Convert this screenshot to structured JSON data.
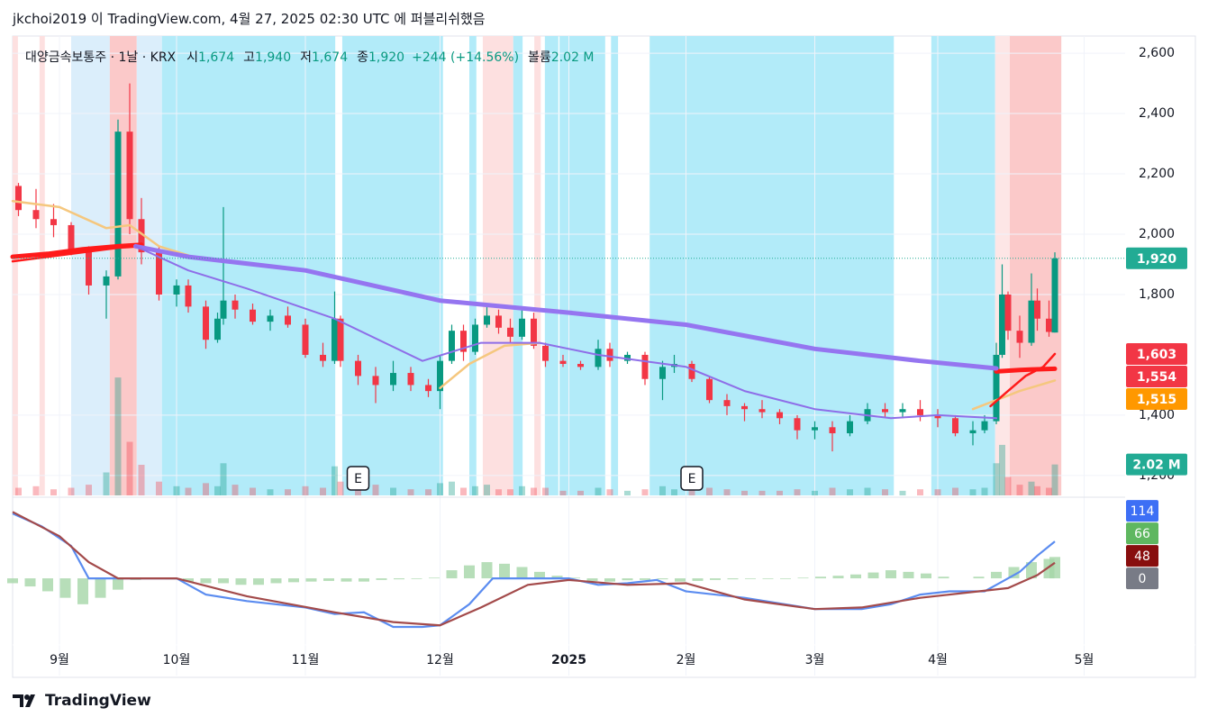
{
  "header": "jkchoi2019 이 TradingView.com, 4월 27, 2025 02:30 UTC 에 퍼블리쉬했음",
  "legend": {
    "symbol": "대양금속보통주 · 1날 · KRX",
    "fields": [
      {
        "key": "시",
        "value": "1,674"
      },
      {
        "key": "고",
        "value": "1,940"
      },
      {
        "key": "저",
        "value": "1,674"
      },
      {
        "key": "종",
        "value": "1,920"
      }
    ],
    "change": "+244 (+14.56%)",
    "volume_key": "볼륨",
    "volume": "2.02 M"
  },
  "footer": "TradingView",
  "chart_data": {
    "type": "candlestick",
    "x": [
      1,
      4,
      7,
      10,
      13,
      16,
      18,
      20,
      22,
      25,
      28,
      30,
      33,
      35,
      36,
      38,
      41,
      44,
      47,
      50,
      53,
      55,
      56,
      59,
      62,
      65,
      68,
      71,
      73,
      75,
      77,
      79,
      81,
      83,
      85,
      87,
      89,
      91,
      94,
      97,
      100,
      102,
      105,
      108,
      111,
      113,
      116,
      119,
      122,
      125,
      128,
      131,
      134,
      137,
      140,
      143,
      146,
      149,
      152,
      155,
      158,
      161,
      164,
      166,
      168,
      169,
      170,
      172,
      174,
      175,
      177,
      178
    ],
    "open": [
      2160,
      2080,
      2050,
      2030,
      1950,
      1830,
      1860,
      2340,
      2050,
      1940,
      1800,
      1830,
      1760,
      1650,
      1720,
      1780,
      1750,
      1710,
      1730,
      1700,
      1600,
      1580,
      1720,
      1580,
      1530,
      1500,
      1540,
      1500,
      1480,
      1580,
      1680,
      1610,
      1700,
      1730,
      1690,
      1660,
      1720,
      1630,
      1580,
      1570,
      1560,
      1620,
      1580,
      1600,
      1520,
      1560,
      1570,
      1520,
      1450,
      1430,
      1420,
      1410,
      1390,
      1350,
      1360,
      1340,
      1380,
      1420,
      1410,
      1420,
      1400,
      1390,
      1340,
      1350,
      1380,
      1600,
      1800,
      1680,
      1640,
      1780,
      1720,
      1674
    ],
    "high": [
      2170,
      2150,
      2100,
      2040,
      1960,
      1880,
      2380,
      2500,
      2120,
      1960,
      1850,
      1850,
      1780,
      1740,
      2090,
      1800,
      1770,
      1750,
      1760,
      1720,
      1640,
      1810,
      1730,
      1600,
      1560,
      1580,
      1560,
      1520,
      1600,
      1700,
      1700,
      1720,
      1760,
      1750,
      1720,
      1760,
      1740,
      1640,
      1600,
      1580,
      1650,
      1640,
      1610,
      1610,
      1580,
      1600,
      1580,
      1530,
      1470,
      1440,
      1450,
      1420,
      1400,
      1380,
      1380,
      1400,
      1440,
      1440,
      1440,
      1450,
      1420,
      1400,
      1380,
      1400,
      1640,
      1900,
      1810,
      1730,
      1870,
      1820,
      1780,
      1940
    ],
    "low": [
      2060,
      2020,
      1990,
      1930,
      1800,
      1720,
      1850,
      2000,
      1900,
      1780,
      1760,
      1740,
      1620,
      1640,
      1700,
      1720,
      1700,
      1680,
      1690,
      1590,
      1560,
      1570,
      1560,
      1500,
      1440,
      1480,
      1480,
      1460,
      1420,
      1570,
      1580,
      1600,
      1690,
      1670,
      1640,
      1650,
      1620,
      1560,
      1560,
      1550,
      1550,
      1560,
      1570,
      1500,
      1450,
      1540,
      1510,
      1440,
      1400,
      1380,
      1390,
      1370,
      1320,
      1320,
      1280,
      1330,
      1370,
      1390,
      1390,
      1380,
      1360,
      1330,
      1300,
      1340,
      1370,
      1590,
      1650,
      1590,
      1630,
      1680,
      1660,
      1674
    ],
    "close": [
      2080,
      2050,
      2030,
      1950,
      1830,
      1860,
      2340,
      2050,
      1940,
      1800,
      1830,
      1760,
      1650,
      1720,
      1780,
      1750,
      1710,
      1730,
      1700,
      1600,
      1580,
      1720,
      1580,
      1530,
      1500,
      1540,
      1500,
      1480,
      1580,
      1680,
      1610,
      1700,
      1730,
      1690,
      1660,
      1720,
      1630,
      1580,
      1570,
      1560,
      1620,
      1580,
      1600,
      1520,
      1560,
      1570,
      1520,
      1450,
      1430,
      1420,
      1410,
      1390,
      1350,
      1360,
      1340,
      1380,
      1420,
      1410,
      1420,
      1400,
      1390,
      1340,
      1350,
      1380,
      1600,
      1800,
      1680,
      1640,
      1780,
      1720,
      1676,
      1920
    ],
    "volume": [
      500000,
      600000,
      400000,
      500000,
      700000,
      1500000,
      7700000,
      3500000,
      2000000,
      900000,
      600000,
      500000,
      800000,
      600000,
      2100000,
      700000,
      500000,
      400000,
      400000,
      600000,
      500000,
      1900000,
      900000,
      600000,
      700000,
      500000,
      400000,
      400000,
      800000,
      900000,
      500000,
      600000,
      700000,
      400000,
      400000,
      600000,
      500000,
      500000,
      300000,
      300000,
      500000,
      400000,
      300000,
      400000,
      600000,
      400000,
      400000,
      500000,
      400000,
      300000,
      300000,
      300000,
      400000,
      300000,
      500000,
      400000,
      500000,
      400000,
      300000,
      400000,
      400000,
      500000,
      400000,
      500000,
      2100000,
      3300000,
      1200000,
      700000,
      900000,
      600000,
      500000,
      2020000
    ],
    "volume_lim": [
      0,
      30000000
    ],
    "up_color": "#089981",
    "down_color": "#f23645",
    "xlim": [
      0,
      190
    ],
    "ylim": [
      1134,
      2657
    ],
    "yticks": [
      {
        "value": 2600,
        "label": "2,600"
      },
      {
        "value": 2400,
        "label": "2,400"
      },
      {
        "value": 2200,
        "label": "2,200"
      },
      {
        "value": 2000,
        "label": "2,000"
      },
      {
        "value": 1800,
        "label": "1,800"
      },
      {
        "value": 1400,
        "label": "1,400"
      },
      {
        "value": 1200,
        "label": "1,200"
      }
    ],
    "xticks": [
      {
        "value": 8,
        "label": "9월"
      },
      {
        "value": 28,
        "label": "10월"
      },
      {
        "value": 50,
        "label": "11월"
      },
      {
        "value": 73,
        "label": "12월"
      },
      {
        "value": 95,
        "label": "2025",
        "bold": true
      },
      {
        "value": 115,
        "label": "2월"
      },
      {
        "value": 137,
        "label": "3월"
      },
      {
        "value": 158,
        "label": "4월"
      },
      {
        "value": 183,
        "label": "5월"
      }
    ],
    "grid": true,
    "bands": [
      {
        "from": 0,
        "to": 0.9,
        "color": "#fde0e0"
      },
      {
        "from": 4.6,
        "to": 5.5,
        "color": "#fde0e0"
      },
      {
        "from": 10,
        "to": 16.6,
        "color": "#dbeefb"
      },
      {
        "from": 16.6,
        "to": 21.2,
        "color": "#fbc9c9"
      },
      {
        "from": 21.2,
        "to": 25.5,
        "color": "#dbeefb"
      },
      {
        "from": 25.5,
        "to": 55.1,
        "color": "#b2ebf9"
      },
      {
        "from": 56.3,
        "to": 73.5,
        "color": "#b2ebf9"
      },
      {
        "from": 78,
        "to": 79.2,
        "color": "#b2ebf9"
      },
      {
        "from": 80.3,
        "to": 85.5,
        "color": "#fde0e0"
      },
      {
        "from": 85.5,
        "to": 87.1,
        "color": "#b2ebf9"
      },
      {
        "from": 89.1,
        "to": 90.2,
        "color": "#fde0e0"
      },
      {
        "from": 90.9,
        "to": 93.2,
        "color": "#b2ebf9"
      },
      {
        "from": 93.4,
        "to": 101.2,
        "color": "#b2ebf9"
      },
      {
        "from": 102.2,
        "to": 103.4,
        "color": "#b2ebf9"
      },
      {
        "from": 108.8,
        "to": 150.5,
        "color": "#b2ebf9"
      },
      {
        "from": 156.9,
        "to": 167.8,
        "color": "#b2ebf9"
      },
      {
        "from": 167.8,
        "to": 170.3,
        "color": "#fde6e6"
      },
      {
        "from": 170.3,
        "to": 179.1,
        "color": "#fbc9c9"
      }
    ],
    "events": [
      {
        "x": 59,
        "label": "E"
      },
      {
        "x": 116,
        "label": "E"
      }
    ],
    "lines": [
      {
        "color": "#f5c77e",
        "width": 2.5,
        "x": [
          0,
          8,
          16,
          20,
          25,
          30,
          31,
          73,
          78,
          84,
          90,
          91,
          164,
          168,
          172,
          178
        ],
        "values": [
          2110,
          2090,
          2020,
          2030,
          1960,
          1930,
          null,
          1490,
          1570,
          1630,
          1640,
          null,
          1420,
          1450,
          1480,
          1515
        ]
      },
      {
        "color": "#ff1a1a",
        "width": 5,
        "x": [
          0,
          6,
          12,
          18,
          22,
          23,
          168,
          172,
          175,
          178
        ],
        "values": [
          1925,
          1935,
          1950,
          1960,
          1965,
          null,
          1545,
          1550,
          1552,
          1554
        ]
      },
      {
        "color": "#ff1a1a",
        "width": 2.5,
        "x": [
          0,
          18,
          22,
          23,
          167,
          170,
          173,
          176,
          178
        ],
        "values": [
          1910,
          1955,
          1960,
          null,
          1430,
          1480,
          1530,
          1560,
          1603
        ]
      },
      {
        "color": "#9575f0",
        "width": 5,
        "x": [
          21,
          30,
          50,
          73,
          95,
          115,
          137,
          155,
          168
        ],
        "values": [
          1960,
          1925,
          1880,
          1780,
          1740,
          1700,
          1620,
          1580,
          1555
        ]
      },
      {
        "color": "#8e6ee8",
        "width": 2,
        "x": [
          21,
          30,
          40,
          55,
          70,
          80,
          90,
          100,
          115,
          125,
          137,
          150,
          158,
          168
        ],
        "values": [
          1960,
          1880,
          1820,
          1720,
          1580,
          1640,
          1640,
          1600,
          1560,
          1480,
          1420,
          1390,
          1400,
          1390
        ]
      }
    ],
    "price_labels": [
      {
        "value": 1920,
        "label": "1,920",
        "color": "#22ab94"
      },
      {
        "value": 1603,
        "label": "1,603",
        "color": "#f23645"
      },
      {
        "value": 1554,
        "label": "1,554",
        "color": "#f23645"
      },
      {
        "value": 1515,
        "label": "1,515",
        "color": "#ff9800"
      }
    ],
    "volume_label": {
      "value": 2020000,
      "label": "2.02 M",
      "color": "#22ab94"
    },
    "oscillator": {
      "ylim": [
        -300,
        242
      ],
      "lines": [
        {
          "color": "#5b8cf0",
          "width": 2.2,
          "x": [
            0,
            5,
            10,
            13,
            17,
            28,
            33,
            40,
            50,
            55,
            60,
            65,
            70,
            73,
            78,
            82,
            86,
            95,
            100,
            105,
            110,
            115,
            125,
            137,
            145,
            150,
            155,
            160,
            166,
            168,
            172,
            175,
            178
          ],
          "values": [
            200,
            160,
            100,
            0,
            0,
            0,
            -50,
            -70,
            -90,
            -110,
            -105,
            -150,
            -150,
            -145,
            -80,
            0,
            0,
            0,
            -20,
            -15,
            -5,
            -40,
            -60,
            -95,
            -95,
            -80,
            -50,
            -40,
            -40,
            -20,
            20,
            70,
            114
          ]
        },
        {
          "color": "#a34a4a",
          "width": 2.2,
          "x": [
            0,
            8,
            13,
            18,
            28,
            40,
            55,
            65,
            73,
            80,
            88,
            95,
            105,
            115,
            125,
            137,
            145,
            155,
            165,
            170,
            175,
            178
          ],
          "values": [
            205,
            130,
            50,
            0,
            0,
            -55,
            -105,
            -135,
            -145,
            -90,
            -20,
            -5,
            -20,
            -15,
            -65,
            -95,
            -90,
            -60,
            -40,
            -30,
            10,
            48
          ]
        }
      ],
      "histogram": {
        "color": "#a5d6a7",
        "x": [
          0,
          3,
          6,
          9,
          12,
          15,
          18,
          21,
          24,
          27,
          30,
          33,
          36,
          39,
          42,
          45,
          48,
          51,
          54,
          57,
          60,
          63,
          66,
          69,
          72,
          75,
          78,
          81,
          84,
          87,
          90,
          93,
          96,
          99,
          102,
          105,
          108,
          111,
          114,
          117,
          120,
          123,
          126,
          129,
          132,
          135,
          138,
          141,
          144,
          147,
          150,
          153,
          156,
          159,
          162,
          165,
          168,
          171,
          174,
          177,
          178
        ],
        "values": [
          -15,
          -25,
          -40,
          -60,
          -80,
          -60,
          -35,
          -5,
          0,
          -3,
          -10,
          -15,
          -15,
          -20,
          -20,
          -15,
          -12,
          -10,
          -8,
          -10,
          -10,
          -5,
          -3,
          -2,
          2,
          25,
          40,
          50,
          45,
          35,
          20,
          8,
          2,
          -8,
          -10,
          -6,
          -5,
          -3,
          -10,
          -8,
          -5,
          -3,
          -2,
          -2,
          -2,
          2,
          5,
          8,
          12,
          18,
          25,
          20,
          15,
          5,
          0,
          5,
          20,
          35,
          50,
          60,
          66
        ]
      },
      "labels": [
        {
          "value": 114,
          "label": "114",
          "color": "#3d6ff5"
        },
        {
          "value": 66,
          "label": "66",
          "color": "#5fb760"
        },
        {
          "value": 48,
          "label": "48",
          "color": "#880e0e"
        },
        {
          "value": 0,
          "label": "0",
          "color": "#787b86"
        }
      ]
    }
  }
}
